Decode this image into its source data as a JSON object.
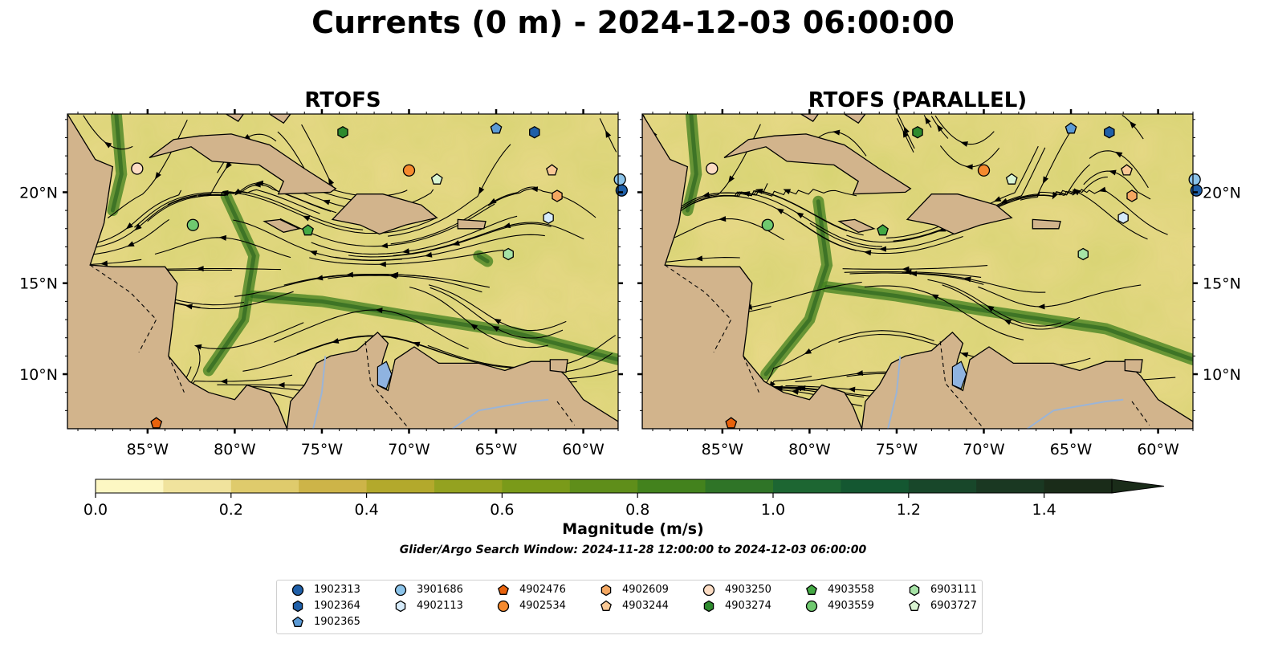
{
  "title": "Currents (0 m) - 2024-12-03 06:00:00",
  "panels": [
    {
      "title": "RTOFS"
    },
    {
      "title": "RTOFS (PARALLEL)"
    }
  ],
  "colorbar": {
    "label": "Magnitude (m/s)",
    "ticks": [
      "0.0",
      "0.2",
      "0.4",
      "0.6",
      "0.8",
      "1.0",
      "1.2",
      "1.4"
    ],
    "colors": [
      "#fdf7c3",
      "#f0e39d",
      "#dfcb6c",
      "#cdb448",
      "#b3a92c",
      "#94a220",
      "#7a9a19",
      "#5f8e1a",
      "#43821d",
      "#2f7427",
      "#1d6632",
      "#145731",
      "#18472a",
      "#1a3822",
      "#1a2c19"
    ]
  },
  "search_window": "Glider/Argo Search Window: 2024-11-28 12:00:00 to 2024-12-03 06:00:00",
  "map": {
    "lon_ticks": [
      "85°W",
      "80°W",
      "75°W",
      "70°W",
      "65°W",
      "60°W"
    ],
    "lat_ticks": [
      "20°N",
      "15°N",
      "10°N"
    ],
    "land_color": "#d2b48c",
    "lake_color": "#8fb3e0"
  },
  "legend": [
    {
      "id": "1902313",
      "marker": "circle",
      "color": "#1f5fa8"
    },
    {
      "id": "1902364",
      "marker": "hexagon",
      "color": "#1f5fa8"
    },
    {
      "id": "1902365",
      "marker": "pentagon",
      "color": "#5b9ad5"
    },
    {
      "id": "3901686",
      "marker": "circle",
      "color": "#8cc4ea"
    },
    {
      "id": "4902113",
      "marker": "hexagon",
      "color": "#d6ebfa"
    },
    {
      "id": "4902476",
      "marker": "pentagon",
      "color": "#e8620c"
    },
    {
      "id": "4902534",
      "marker": "circle",
      "color": "#f58a2e"
    },
    {
      "id": "4902609",
      "marker": "hexagon",
      "color": "#f4a761"
    },
    {
      "id": "4903244",
      "marker": "pentagon",
      "color": "#f9c895"
    },
    {
      "id": "4903250",
      "marker": "circle",
      "color": "#fcdcc3"
    },
    {
      "id": "4903274",
      "marker": "hexagon",
      "color": "#2e8b2e"
    },
    {
      "id": "4903558",
      "marker": "pentagon",
      "color": "#44a944"
    },
    {
      "id": "4903559",
      "marker": "circle",
      "color": "#6fc96f"
    },
    {
      "id": "6903111",
      "marker": "hexagon",
      "color": "#a6e3a6"
    },
    {
      "id": "6903727",
      "marker": "pentagon",
      "color": "#d9f4d2"
    }
  ],
  "observations": [
    {
      "id": "1902313",
      "lon": -57.8,
      "lat": 20.1
    },
    {
      "id": "1902364",
      "lon": -62.8,
      "lat": 23.3
    },
    {
      "id": "1902365",
      "lon": -65.0,
      "lat": 23.5
    },
    {
      "id": "3901686",
      "lon": -57.9,
      "lat": 20.7
    },
    {
      "id": "4902113",
      "lon": -62.0,
      "lat": 18.6
    },
    {
      "id": "4902476",
      "lon": -84.5,
      "lat": 7.3
    },
    {
      "id": "4902534",
      "lon": -70.0,
      "lat": 21.2
    },
    {
      "id": "4902609",
      "lon": -61.5,
      "lat": 19.8
    },
    {
      "id": "4903244",
      "lon": -61.8,
      "lat": 21.2
    },
    {
      "id": "4903250",
      "lon": -85.6,
      "lat": 21.3
    },
    {
      "id": "4903274",
      "lon": -73.8,
      "lat": 23.3
    },
    {
      "id": "4903558",
      "lon": -75.8,
      "lat": 17.9
    },
    {
      "id": "4903559",
      "lon": -82.4,
      "lat": 18.2
    },
    {
      "id": "6903111",
      "lon": -64.3,
      "lat": 16.6
    },
    {
      "id": "6903727",
      "lon": -68.4,
      "lat": 20.7
    }
  ],
  "chart_data": {
    "type": "map",
    "title": "Currents (0 m) - 2024-12-03 06:00:00",
    "subplots": [
      "RTOFS",
      "RTOFS (PARALLEL)"
    ],
    "variable": "surface current magnitude",
    "units": "m/s",
    "colorbar_range": [
      0.0,
      1.5
    ],
    "colorbar_extend": "max",
    "lon_range": [
      -89.6,
      -58.0
    ],
    "lat_range": [
      7.0,
      24.3
    ]
  }
}
